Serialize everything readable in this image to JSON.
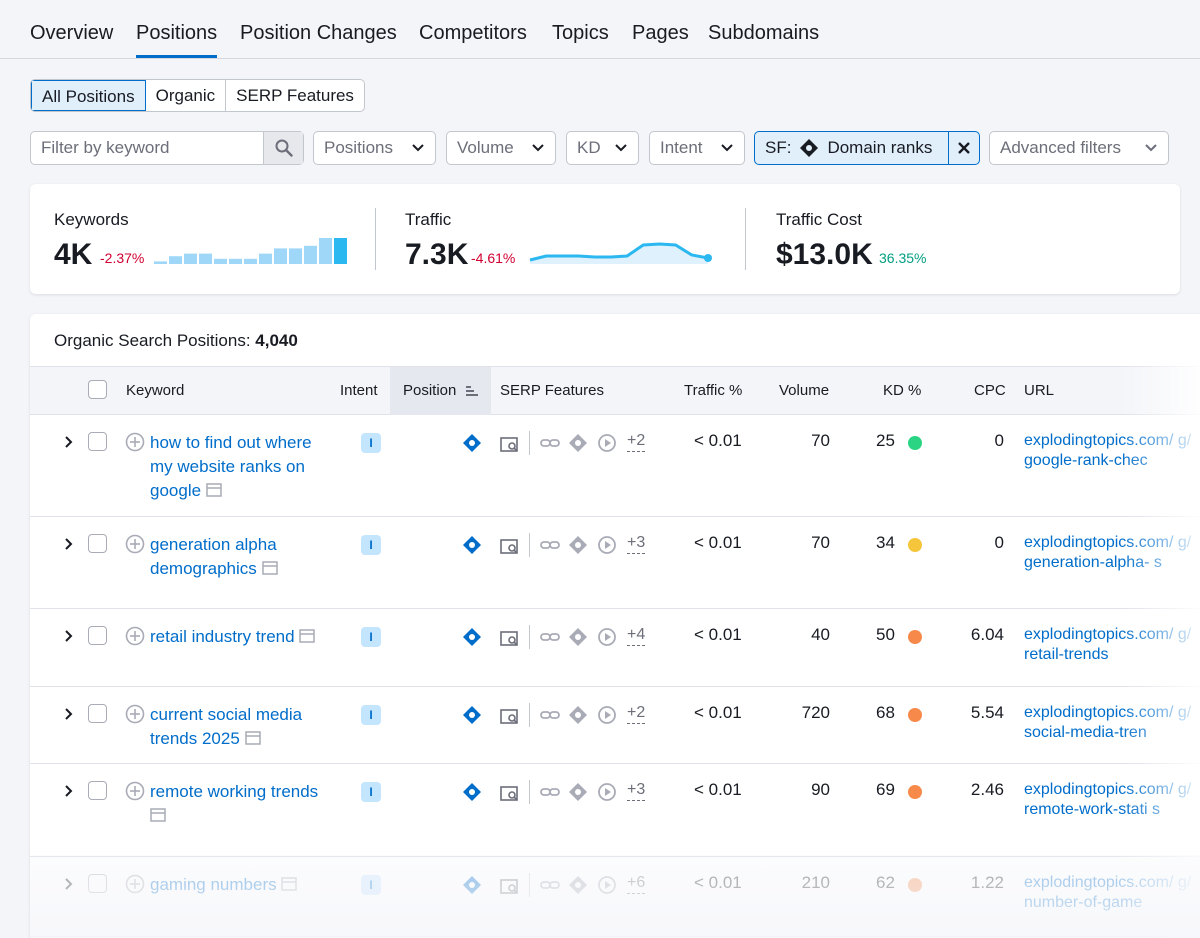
{
  "tabs": [
    {
      "label": "Overview"
    },
    {
      "label": "Positions"
    },
    {
      "label": "Position Changes"
    },
    {
      "label": "Competitors"
    },
    {
      "label": "Topics"
    },
    {
      "label": "Pages"
    },
    {
      "label": "Subdomains"
    }
  ],
  "segment": [
    "All Positions",
    "Organic",
    "SERP Features"
  ],
  "filters": {
    "keyword_placeholder": "Filter by keyword",
    "positions": "Positions",
    "volume": "Volume",
    "kd": "KD",
    "intent": "Intent",
    "sf_prefix": "SF:",
    "sf_value": "Domain ranks",
    "advanced": "Advanced filters"
  },
  "summary": {
    "keywords": {
      "label": "Keywords",
      "value": "4K",
      "delta": "-2.37%"
    },
    "traffic": {
      "label": "Traffic",
      "value": "7.3K",
      "delta": "-4.61%"
    },
    "traffic_cost": {
      "label": "Traffic Cost",
      "value": "$13.0K",
      "delta": "36.35%"
    }
  },
  "sparkline_keywords": [
    0.1,
    0.3,
    0.4,
    0.4,
    0.2,
    0.2,
    0.2,
    0.4,
    0.6,
    0.6,
    0.7,
    1.0,
    1.0
  ],
  "sparkline_traffic": [
    0.1,
    0.3,
    0.3,
    0.3,
    0.25,
    0.25,
    0.3,
    0.85,
    0.9,
    0.85,
    0.35,
    0.2
  ],
  "table": {
    "title": "Organic Search Positions:",
    "count": "4,040",
    "headers": {
      "keyword": "Keyword",
      "intent": "Intent",
      "position": "Position",
      "serp": "SERP Features",
      "traffic": "Traffic %",
      "volume": "Volume",
      "kd": "KD %",
      "cpc": "CPC",
      "url": "URL"
    },
    "rows": [
      {
        "keyword": "how to find out where my website ranks on google",
        "intent": "I",
        "more": "+2",
        "traffic": "< 0.01",
        "volume": "70",
        "kd": "25",
        "kd_color": "#2bd483",
        "cpc": "0",
        "url": "explodingtopics.com/blog/google-rank-checker",
        "url_shown": "explodingtopics.com/ g/google-rank-chec"
      },
      {
        "keyword": "generation alpha demographics",
        "intent": "I",
        "more": "+3",
        "traffic": "< 0.01",
        "volume": "70",
        "kd": "34",
        "kd_color": "#f5c63b",
        "cpc": "0",
        "url_shown": "explodingtopics.com/ g/generation-alpha- s"
      },
      {
        "keyword": "retail industry trend",
        "intent": "I",
        "more": "+4",
        "traffic": "< 0.01",
        "volume": "40",
        "kd": "50",
        "kd_color": "#f7894a",
        "cpc": "6.04",
        "url_shown": "explodingtopics.com/ g/retail-trends"
      },
      {
        "keyword": "current social media trends 2025",
        "intent": "I",
        "more": "+2",
        "traffic": "< 0.01",
        "volume": "720",
        "kd": "68",
        "kd_color": "#f7894a",
        "cpc": "5.54",
        "url_shown": "explodingtopics.com/ g/social-media-tren"
      },
      {
        "keyword": "remote working trends",
        "intent": "I",
        "more": "+3",
        "traffic": "< 0.01",
        "volume": "90",
        "kd": "69",
        "kd_color": "#f7894a",
        "cpc": "2.46",
        "url_shown": "explodingtopics.com/ g/remote-work-stati s"
      },
      {
        "keyword": "gaming numbers",
        "intent": "I",
        "more": "+6",
        "traffic": "< 0.01",
        "volume": "210",
        "kd": "62",
        "kd_color": "#f7894a",
        "cpc": "1.22",
        "url_shown": "explodingtopics.com/ g/number-of-game"
      }
    ]
  }
}
